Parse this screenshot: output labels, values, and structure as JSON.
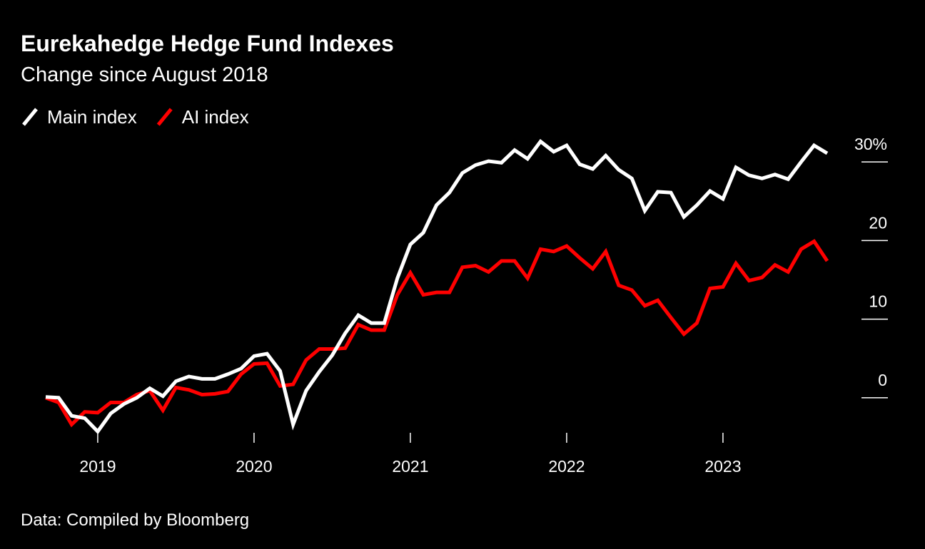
{
  "chart_data": {
    "type": "line",
    "title": "Eurekahedge Hedge Fund Indexes",
    "subtitle": "Change since August 2018",
    "source": "Data: Compiled by Bloomberg",
    "x": [
      2018.667,
      2018.75,
      2018.833,
      2018.917,
      2019.0,
      2019.083,
      2019.167,
      2019.25,
      2019.333,
      2019.417,
      2019.5,
      2019.583,
      2019.667,
      2019.75,
      2019.833,
      2019.917,
      2020.0,
      2020.083,
      2020.167,
      2020.25,
      2020.333,
      2020.417,
      2020.5,
      2020.583,
      2020.667,
      2020.75,
      2020.833,
      2020.917,
      2021.0,
      2021.083,
      2021.167,
      2021.25,
      2021.333,
      2021.417,
      2021.5,
      2021.583,
      2021.667,
      2021.75,
      2021.833,
      2021.917,
      2022.0,
      2022.083,
      2022.167,
      2022.25,
      2022.333,
      2022.417,
      2022.5,
      2022.583,
      2022.667,
      2022.75,
      2022.833,
      2022.917,
      2023.0,
      2023.083,
      2023.167,
      2023.25,
      2023.333,
      2023.417,
      2023.5,
      2023.583,
      2023.667
    ],
    "series": [
      {
        "name": "Main index",
        "color": "#ffffff",
        "values": [
          0.1,
          0.0,
          -2.3,
          -2.6,
          -4.3,
          -2.0,
          -0.8,
          0.0,
          1.2,
          0.2,
          2.1,
          2.7,
          2.4,
          2.4,
          3.0,
          3.7,
          5.3,
          5.6,
          3.4,
          -3.4,
          0.9,
          3.3,
          5.4,
          8.2,
          10.5,
          9.5,
          9.5,
          15.2,
          19.5,
          21.0,
          24.5,
          26.1,
          28.6,
          29.6,
          30.1,
          29.9,
          31.5,
          30.4,
          32.6,
          31.3,
          32.1,
          29.7,
          29.1,
          30.8,
          29.0,
          27.9,
          23.8,
          26.2,
          26.1,
          23.0,
          24.5,
          26.3,
          25.3,
          29.3,
          28.3,
          27.9,
          28.4,
          27.8,
          30.0,
          32.1,
          31.1
        ]
      },
      {
        "name": "AI index",
        "color": "#ff0000",
        "values": [
          0.0,
          -0.6,
          -3.4,
          -1.8,
          -1.9,
          -0.6,
          -0.6,
          0.4,
          0.9,
          -1.6,
          1.3,
          1.0,
          0.4,
          0.5,
          0.8,
          3.0,
          4.3,
          4.4,
          1.5,
          1.7,
          4.8,
          6.2,
          6.2,
          6.3,
          9.3,
          8.6,
          8.6,
          13.1,
          15.9,
          13.1,
          13.4,
          13.4,
          16.6,
          16.8,
          16.0,
          17.4,
          17.4,
          15.2,
          18.9,
          18.6,
          19.3,
          17.8,
          16.4,
          18.6,
          14.3,
          13.7,
          11.7,
          12.4,
          10.2,
          8.1,
          9.5,
          13.9,
          14.1,
          17.1,
          14.9,
          15.3,
          16.9,
          16.0,
          18.9,
          19.9,
          17.4
        ]
      }
    ],
    "xlim": [
      2018.667,
      2023.667
    ],
    "xticks": [
      2019,
      2020,
      2021,
      2022,
      2023
    ],
    "ylim": [
      -6,
      34
    ],
    "yticks": [
      0,
      10,
      20,
      {
        "value": 30,
        "label": "30%"
      }
    ]
  }
}
